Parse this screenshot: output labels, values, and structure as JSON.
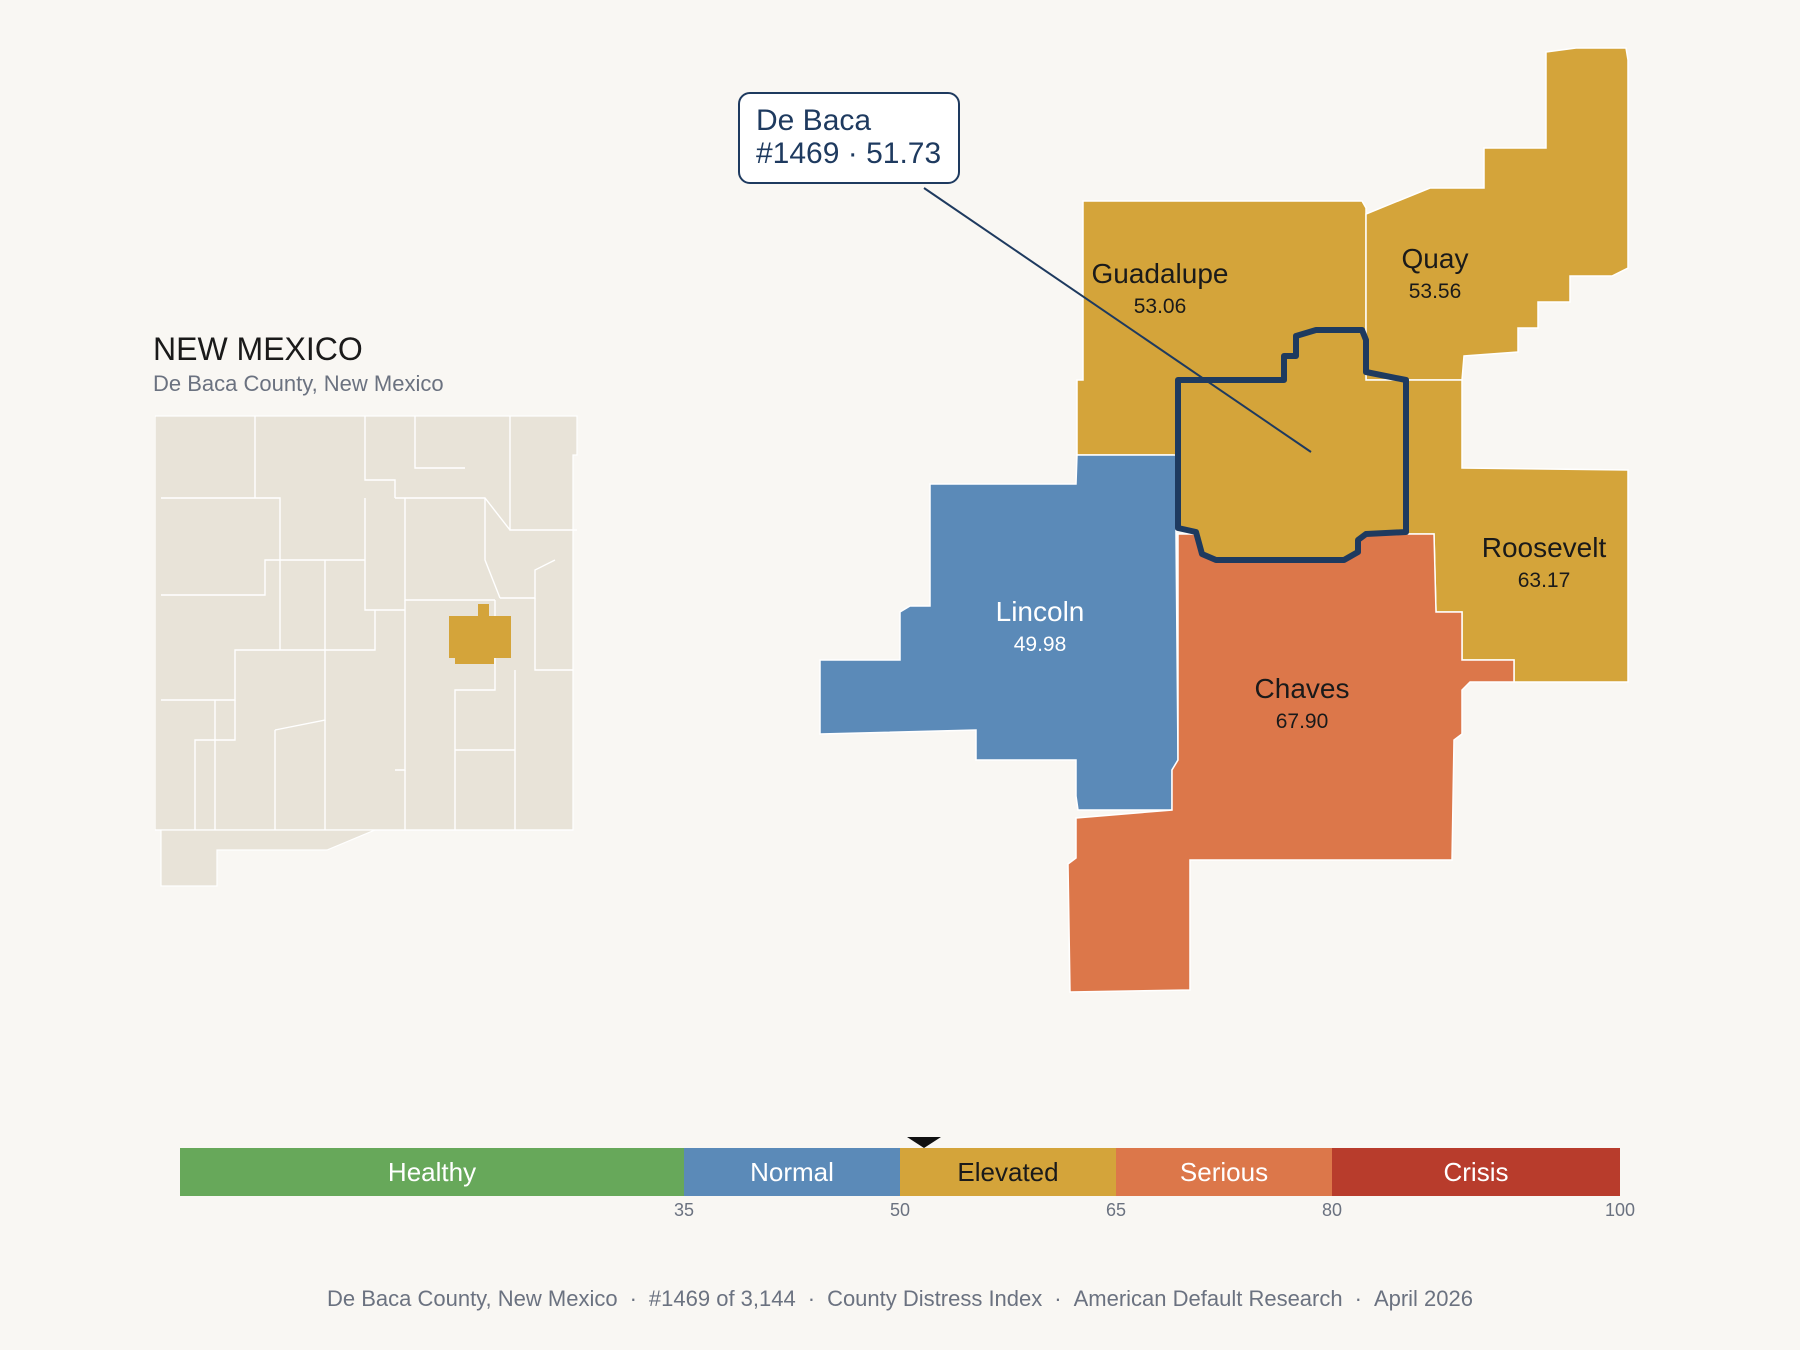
{
  "state_title": "NEW MEXICO",
  "state_subtitle": "De Baca County, New Mexico",
  "callout": {
    "county": "De Baca",
    "detail": "#1469 · 51.73"
  },
  "counties": [
    {
      "name": "Guadalupe",
      "value": "53.06",
      "color": "#d4a43a"
    },
    {
      "name": "Quay",
      "value": "53.56",
      "color": "#d4a43a"
    },
    {
      "name": "Roosevelt",
      "value": "63.17",
      "color": "#d4a43a"
    },
    {
      "name": "Lincoln",
      "value": "49.98",
      "color": "#5b8ab8"
    },
    {
      "name": "Chaves",
      "value": "67.90",
      "color": "#dc774a"
    },
    {
      "name": "De Baca",
      "value": "51.73",
      "color": "#d4a43a",
      "highlighted": true
    }
  ],
  "legend": {
    "segments": [
      {
        "label": "Healthy",
        "from": 0,
        "to": 35,
        "color": "#67a85a"
      },
      {
        "label": "Normal",
        "from": 35,
        "to": 50,
        "color": "#5b8ab8"
      },
      {
        "label": "Elevated",
        "from": 50,
        "to": 65,
        "color": "#d4a43a"
      },
      {
        "label": "Serious",
        "from": 65,
        "to": 80,
        "color": "#dc774a"
      },
      {
        "label": "Crisis",
        "from": 80,
        "to": 100,
        "color": "#b83c2c"
      }
    ],
    "ticks": [
      "35",
      "50",
      "65",
      "80",
      "100"
    ],
    "marker_value": 51.73
  },
  "footer": {
    "items": [
      "De Baca County, New Mexico",
      "#1469 of 3,144",
      "County Distress Index",
      "American Default Research",
      "April 2026"
    ],
    "separator": "·"
  }
}
